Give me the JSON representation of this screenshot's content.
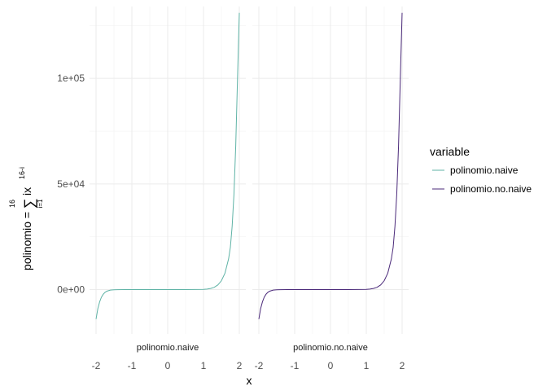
{
  "chart_data": {
    "type": "line",
    "facets": [
      "polinomio.naive",
      "polinomio.no.naive"
    ],
    "xlabel": "x",
    "ylabel": {
      "lhs": "polinomio",
      "equals": "=",
      "sum_symbol": "∑",
      "sum_upper": "16",
      "sum_lower": "i=1",
      "term": "ix",
      "exponent": "16-i"
    },
    "xlim": [
      -2,
      2
    ],
    "ylim": [
      -21000,
      134000
    ],
    "x_ticks": [
      -2,
      -1,
      0,
      1,
      2
    ],
    "x_tick_labels": [
      "-2",
      "-1",
      "0",
      "1",
      "2"
    ],
    "y_ticks": [
      0,
      50000,
      100000
    ],
    "y_tick_labels": [
      "0e+00",
      "5e+04",
      "1e+05"
    ],
    "grid": true,
    "legend_position": "right",
    "legend": {
      "title": "variable",
      "entries": [
        {
          "label": "polinomio.naive",
          "color": "#5fb3a6"
        },
        {
          "label": "polinomio.no.naive",
          "color": "#4b2a7a"
        }
      ]
    },
    "series": [
      {
        "name": "polinomio.naive",
        "facet": "polinomio.naive",
        "color": "#5fb3a6",
        "x": [
          -2.0,
          -1.95,
          -1.9,
          -1.85,
          -1.8,
          -1.75,
          -1.7,
          -1.6,
          -1.5,
          -1.4,
          -1.2,
          -1.0,
          -0.5,
          0.0,
          0.5,
          1.0,
          1.1,
          1.2,
          1.3,
          1.4,
          1.5,
          1.6,
          1.7,
          1.75,
          1.8,
          1.85,
          1.9,
          1.95,
          2.0
        ],
        "y": [
          -14000,
          -9000,
          -5800,
          -3600,
          -2200,
          -1300,
          -760,
          -240,
          -70,
          -30,
          -5,
          -1,
          0,
          0,
          0,
          120,
          260,
          550,
          1100,
          2200,
          4200,
          7800,
          14500,
          20000,
          30000,
          45000,
          68000,
          100000,
          131000
        ]
      },
      {
        "name": "polinomio.no.naive",
        "facet": "polinomio.no.naive",
        "color": "#4b2a7a",
        "x": [
          -2.0,
          -1.95,
          -1.9,
          -1.85,
          -1.8,
          -1.75,
          -1.7,
          -1.6,
          -1.5,
          -1.4,
          -1.2,
          -1.0,
          -0.5,
          0.0,
          0.5,
          1.0,
          1.1,
          1.2,
          1.3,
          1.4,
          1.5,
          1.6,
          1.7,
          1.75,
          1.8,
          1.85,
          1.9,
          1.95,
          2.0
        ],
        "y": [
          -14000,
          -9000,
          -5800,
          -3600,
          -2200,
          -1300,
          -760,
          -240,
          -70,
          -30,
          -5,
          -1,
          0,
          0,
          0,
          120,
          260,
          550,
          1100,
          2200,
          4200,
          7800,
          14500,
          20000,
          30000,
          45000,
          68000,
          100000,
          131000
        ]
      }
    ]
  }
}
